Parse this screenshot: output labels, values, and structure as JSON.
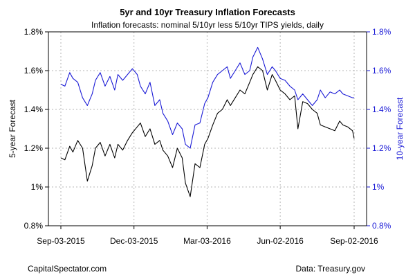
{
  "chart_data": {
    "type": "line",
    "title": "5yr and 10yr Treasury Inflation Forecasts",
    "subtitle": "Inflation forecasts: nominal 5/10yr less 5/10yr TIPS yields, daily",
    "ylabel_left": "5-year Forecast",
    "ylabel_right": "10-year Forecast",
    "ylim": [
      0.8,
      1.8
    ],
    "y_ticks": [
      0.8,
      1.0,
      1.2,
      1.4,
      1.6,
      1.8
    ],
    "y_tick_labels_left": [
      "0.8%",
      "1%",
      "1.2%",
      "1.4%",
      "1.6%",
      "1.8%"
    ],
    "y_tick_labels_right": [
      "0.8%",
      "1%",
      "1.2%",
      "1.4%",
      "1.6%",
      "1.8%"
    ],
    "x_tick_labels": [
      "Sep-03-2015",
      "Dec-03-2015",
      "Mar-03-2016",
      "Jun-02-2016",
      "Sep-02-2016"
    ],
    "x_tick_dates": [
      "2015-09-03",
      "2015-12-03",
      "2016-03-03",
      "2016-06-02",
      "2016-09-02"
    ],
    "grid": true,
    "colors": {
      "series_5yr": "#000000",
      "series_10yr": "#1a1ad6",
      "right_axis": "#1a1ad6",
      "grid": "#b5b5b5"
    },
    "series": [
      {
        "key": "5yr",
        "axis": "left",
        "dates": [
          "2015-09-03",
          "2015-09-08",
          "2015-09-14",
          "2015-09-18",
          "2015-09-24",
          "2015-09-30",
          "2015-10-06",
          "2015-10-12",
          "2015-10-16",
          "2015-10-22",
          "2015-10-28",
          "2015-11-03",
          "2015-11-09",
          "2015-11-13",
          "2015-11-19",
          "2015-11-25",
          "2015-12-01",
          "2015-12-07",
          "2015-12-11",
          "2015-12-17",
          "2015-12-23",
          "2015-12-29",
          "2016-01-04",
          "2016-01-08",
          "2016-01-14",
          "2016-01-20",
          "2016-01-26",
          "2016-02-01",
          "2016-02-05",
          "2016-02-11",
          "2016-02-17",
          "2016-02-23",
          "2016-02-29",
          "2016-03-04",
          "2016-03-10",
          "2016-03-16",
          "2016-03-22",
          "2016-03-28",
          "2016-04-01",
          "2016-04-07",
          "2016-04-13",
          "2016-04-19",
          "2016-04-25",
          "2016-04-29",
          "2016-05-05",
          "2016-05-11",
          "2016-05-17",
          "2016-05-23",
          "2016-05-27",
          "2016-06-02",
          "2016-06-08",
          "2016-06-14",
          "2016-06-20",
          "2016-06-24",
          "2016-06-30",
          "2016-07-06",
          "2016-07-12",
          "2016-07-18",
          "2016-07-22",
          "2016-07-28",
          "2016-08-03",
          "2016-08-09",
          "2016-08-15",
          "2016-08-19",
          "2016-08-25",
          "2016-08-31",
          "2016-09-02"
        ],
        "values": [
          1.15,
          1.14,
          1.21,
          1.18,
          1.24,
          1.2,
          1.03,
          1.11,
          1.2,
          1.23,
          1.16,
          1.22,
          1.15,
          1.22,
          1.19,
          1.24,
          1.28,
          1.31,
          1.33,
          1.26,
          1.3,
          1.22,
          1.24,
          1.19,
          1.16,
          1.1,
          1.2,
          1.15,
          1.02,
          0.95,
          1.12,
          1.1,
          1.22,
          1.25,
          1.32,
          1.38,
          1.4,
          1.45,
          1.42,
          1.46,
          1.5,
          1.48,
          1.54,
          1.58,
          1.62,
          1.6,
          1.5,
          1.58,
          1.55,
          1.5,
          1.48,
          1.45,
          1.47,
          1.3,
          1.44,
          1.43,
          1.4,
          1.38,
          1.32,
          1.31,
          1.3,
          1.29,
          1.34,
          1.32,
          1.31,
          1.29,
          1.25
        ]
      },
      {
        "key": "10yr",
        "axis": "right",
        "dates": [
          "2015-09-03",
          "2015-09-08",
          "2015-09-14",
          "2015-09-18",
          "2015-09-24",
          "2015-09-30",
          "2015-10-06",
          "2015-10-12",
          "2015-10-16",
          "2015-10-22",
          "2015-10-28",
          "2015-11-03",
          "2015-11-09",
          "2015-11-13",
          "2015-11-19",
          "2015-11-25",
          "2015-12-01",
          "2015-12-07",
          "2015-12-11",
          "2015-12-17",
          "2015-12-23",
          "2015-12-29",
          "2016-01-04",
          "2016-01-08",
          "2016-01-14",
          "2016-01-20",
          "2016-01-26",
          "2016-02-01",
          "2016-02-05",
          "2016-02-11",
          "2016-02-17",
          "2016-02-23",
          "2016-02-29",
          "2016-03-04",
          "2016-03-10",
          "2016-03-16",
          "2016-03-22",
          "2016-03-28",
          "2016-04-01",
          "2016-04-07",
          "2016-04-13",
          "2016-04-19",
          "2016-04-25",
          "2016-04-29",
          "2016-05-05",
          "2016-05-11",
          "2016-05-17",
          "2016-05-23",
          "2016-05-27",
          "2016-06-02",
          "2016-06-08",
          "2016-06-14",
          "2016-06-20",
          "2016-06-24",
          "2016-06-30",
          "2016-07-06",
          "2016-07-12",
          "2016-07-18",
          "2016-07-22",
          "2016-07-28",
          "2016-08-03",
          "2016-08-09",
          "2016-08-15",
          "2016-08-19",
          "2016-08-25",
          "2016-08-31",
          "2016-09-02"
        ],
        "values": [
          1.53,
          1.52,
          1.59,
          1.56,
          1.54,
          1.46,
          1.42,
          1.48,
          1.55,
          1.59,
          1.52,
          1.57,
          1.5,
          1.58,
          1.55,
          1.58,
          1.61,
          1.58,
          1.52,
          1.48,
          1.54,
          1.42,
          1.45,
          1.38,
          1.34,
          1.27,
          1.33,
          1.3,
          1.22,
          1.2,
          1.32,
          1.33,
          1.43,
          1.46,
          1.54,
          1.58,
          1.6,
          1.62,
          1.56,
          1.6,
          1.64,
          1.58,
          1.6,
          1.67,
          1.72,
          1.66,
          1.58,
          1.62,
          1.6,
          1.56,
          1.55,
          1.52,
          1.5,
          1.45,
          1.48,
          1.45,
          1.42,
          1.45,
          1.5,
          1.46,
          1.49,
          1.48,
          1.5,
          1.48,
          1.47,
          1.46,
          1.46
        ]
      }
    ],
    "footer_left": "CapitalSpectator.com",
    "footer_right": "Data: Treasury.gov"
  }
}
